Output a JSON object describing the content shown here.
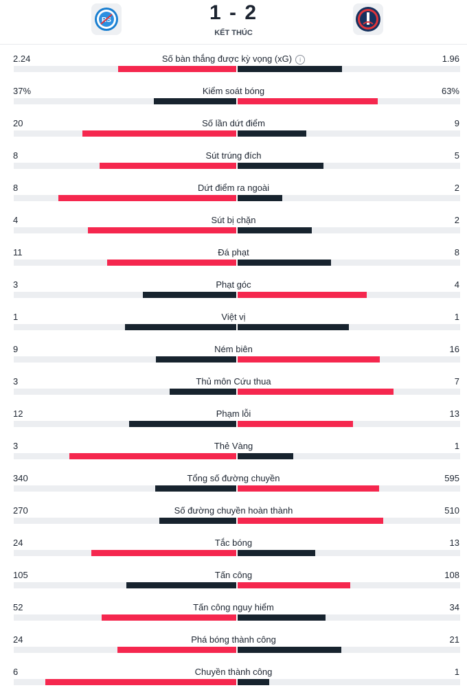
{
  "match": {
    "score": "1 - 2",
    "status": "KẾT THÚC",
    "home_logo_icon": "rc-strasbourg-crest-icon",
    "away_logo_icon": "psg-crest-icon"
  },
  "colors": {
    "highlight": "#f5274e",
    "dark": "#17232e",
    "track": "#eceef1"
  },
  "stats": [
    {
      "label": "Số bàn thắng được kỳ vọng (xG)",
      "home": "2.24",
      "away": "1.96",
      "home_frac": 0.53,
      "away_frac": 0.47,
      "winner": "home",
      "info": true
    },
    {
      "label": "Kiểm soát bóng",
      "home": "37%",
      "away": "63%",
      "home_frac": 0.37,
      "away_frac": 0.63,
      "winner": "away"
    },
    {
      "label": "Số lần dứt điểm",
      "home": "20",
      "away": "9",
      "home_frac": 0.69,
      "away_frac": 0.31,
      "winner": "home"
    },
    {
      "label": "Sút trúng đích",
      "home": "8",
      "away": "5",
      "home_frac": 0.615,
      "away_frac": 0.385,
      "winner": "home"
    },
    {
      "label": "Dứt điểm ra ngoài",
      "home": "8",
      "away": "2",
      "home_frac": 0.8,
      "away_frac": 0.2,
      "winner": "home"
    },
    {
      "label": "Sút bị chặn",
      "home": "4",
      "away": "2",
      "home_frac": 0.667,
      "away_frac": 0.333,
      "winner": "home"
    },
    {
      "label": "Đá phạt",
      "home": "11",
      "away": "8",
      "home_frac": 0.58,
      "away_frac": 0.42,
      "winner": "home"
    },
    {
      "label": "Phạt góc",
      "home": "3",
      "away": "4",
      "home_frac": 0.42,
      "away_frac": 0.58,
      "winner": "away"
    },
    {
      "label": "Việt vị",
      "home": "1",
      "away": "1",
      "home_frac": 0.5,
      "away_frac": 0.5,
      "winner": "none"
    },
    {
      "label": "Ném biên",
      "home": "9",
      "away": "16",
      "home_frac": 0.36,
      "away_frac": 0.64,
      "winner": "away"
    },
    {
      "label": "Thủ môn Cứu thua",
      "home": "3",
      "away": "7",
      "home_frac": 0.3,
      "away_frac": 0.7,
      "winner": "away"
    },
    {
      "label": "Phạm lỗi",
      "home": "12",
      "away": "13",
      "home_frac": 0.48,
      "away_frac": 0.52,
      "winner": "away"
    },
    {
      "label": "Thẻ Vàng",
      "home": "3",
      "away": "1",
      "home_frac": 0.75,
      "away_frac": 0.25,
      "winner": "home"
    },
    {
      "label": "Tổng số đường chuyền",
      "home": "340",
      "away": "595",
      "home_frac": 0.364,
      "away_frac": 0.636,
      "winner": "away"
    },
    {
      "label": "Số đường chuyền hoàn thành",
      "home": "270",
      "away": "510",
      "home_frac": 0.346,
      "away_frac": 0.654,
      "winner": "away"
    },
    {
      "label": "Tắc bóng",
      "home": "24",
      "away": "13",
      "home_frac": 0.65,
      "away_frac": 0.35,
      "winner": "home"
    },
    {
      "label": "Tấn công",
      "home": "105",
      "away": "108",
      "home_frac": 0.493,
      "away_frac": 0.507,
      "winner": "away"
    },
    {
      "label": "Tấn công nguy hiểm",
      "home": "52",
      "away": "34",
      "home_frac": 0.605,
      "away_frac": 0.395,
      "winner": "home"
    },
    {
      "label": "Phá bóng thành công",
      "home": "24",
      "away": "21",
      "home_frac": 0.533,
      "away_frac": 0.467,
      "winner": "home"
    },
    {
      "label": "Chuyền thành công",
      "home": "6",
      "away": "1",
      "home_frac": 0.857,
      "away_frac": 0.143,
      "winner": "home"
    }
  ]
}
